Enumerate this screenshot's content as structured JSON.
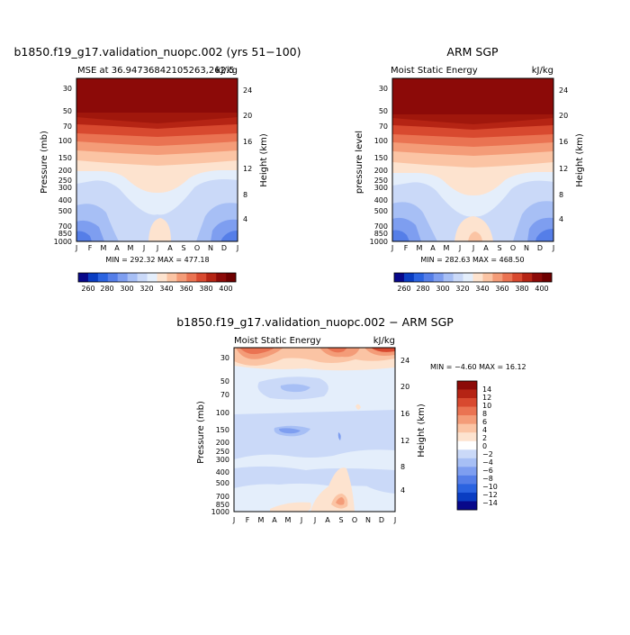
{
  "chart_data": [
    {
      "type": "heatmap",
      "title": "b1850.f19_g17.validation_nuopc.002 (yrs 51−100)",
      "left_label": "MSE at 36.94736842105263,262.5",
      "right_label": "kJ/kg",
      "xlabel": "",
      "ylabel": "Pressure (mb)",
      "right_axis_label": "Height (km)",
      "x_ticks": [
        "J",
        "F",
        "M",
        "A",
        "M",
        "J",
        "J",
        "A",
        "S",
        "O",
        "N",
        "D",
        "J"
      ],
      "y_ticks": [
        30,
        50,
        70,
        100,
        150,
        200,
        250,
        300,
        400,
        500,
        700,
        850,
        1000
      ],
      "height_ticks": [
        24,
        20,
        16,
        12,
        8,
        4
      ],
      "ylim": [
        1000,
        20
      ],
      "stats": "MIN = 292.32  MAX = 477.18",
      "min": 292.32,
      "max": 477.18,
      "colorbar": {
        "levels": [
          260,
          280,
          300,
          320,
          340,
          360,
          380,
          400
        ],
        "colors": [
          "#08088a",
          "#0a3dc2",
          "#2b63e0",
          "#557ee8",
          "#7e9ef0",
          "#a7bff5",
          "#cad9f8",
          "#e4eefb",
          "#fde3cf",
          "#fbc4a4",
          "#f49c78",
          "#ea7352",
          "#d8492f",
          "#b52414",
          "#8c0a08",
          "#6e0000"
        ]
      }
    },
    {
      "type": "heatmap",
      "title": "ARM SGP",
      "left_label": "Moist Static Energy",
      "right_label": "kJ/kg",
      "ylabel": "pressure level",
      "right_axis_label": "Height (km)",
      "x_ticks": [
        "J",
        "F",
        "M",
        "A",
        "M",
        "J",
        "J",
        "A",
        "S",
        "O",
        "N",
        "D",
        "J"
      ],
      "y_ticks": [
        30,
        50,
        70,
        100,
        150,
        200,
        250,
        300,
        400,
        500,
        700,
        850,
        1000
      ],
      "height_ticks": [
        24,
        20,
        16,
        12,
        8,
        4
      ],
      "ylim": [
        1000,
        20
      ],
      "stats": "MIN = 282.63  MAX = 468.50",
      "min": 282.63,
      "max": 468.5,
      "colorbar": {
        "levels": [
          260,
          280,
          300,
          320,
          340,
          360,
          380,
          400
        ],
        "colors": [
          "#08088a",
          "#0a3dc2",
          "#2b63e0",
          "#557ee8",
          "#7e9ef0",
          "#a7bff5",
          "#cad9f8",
          "#e4eefb",
          "#fde3cf",
          "#fbc4a4",
          "#f49c78",
          "#ea7352",
          "#d8492f",
          "#b52414",
          "#8c0a08",
          "#6e0000"
        ]
      }
    },
    {
      "type": "heatmap",
      "title": "b1850.f19_g17.validation_nuopc.002 − ARM SGP",
      "left_label": "Moist Static Energy",
      "right_label": "kJ/kg",
      "ylabel": "Pressure (mb)",
      "right_axis_label": "Height (km)",
      "x_ticks": [
        "J",
        "F",
        "M",
        "A",
        "M",
        "J",
        "J",
        "A",
        "S",
        "O",
        "N",
        "D",
        "J"
      ],
      "y_ticks": [
        30,
        50,
        70,
        100,
        150,
        200,
        250,
        300,
        400,
        500,
        700,
        850,
        1000
      ],
      "height_ticks": [
        24,
        20,
        16,
        12,
        8,
        4
      ],
      "ylim": [
        1000,
        20
      ],
      "stats": "MIN =  −4.60 MAX =  16.12",
      "min": -4.6,
      "max": 16.12,
      "colorbar": {
        "levels": [
          "14",
          "12",
          "10",
          "8",
          "6",
          "4",
          "2",
          "0",
          "−2",
          "−4",
          "−6",
          "−8",
          "−10",
          "−12",
          "−14"
        ],
        "colors": [
          "#8c0a08",
          "#b52414",
          "#d8492f",
          "#ea7352",
          "#f49c78",
          "#fbc4a4",
          "#fde3cf",
          "#ffffff",
          "#cad9f8",
          "#a7bff5",
          "#7e9ef0",
          "#557ee8",
          "#2b63e0",
          "#0a3dc2",
          "#08088a"
        ]
      }
    }
  ]
}
